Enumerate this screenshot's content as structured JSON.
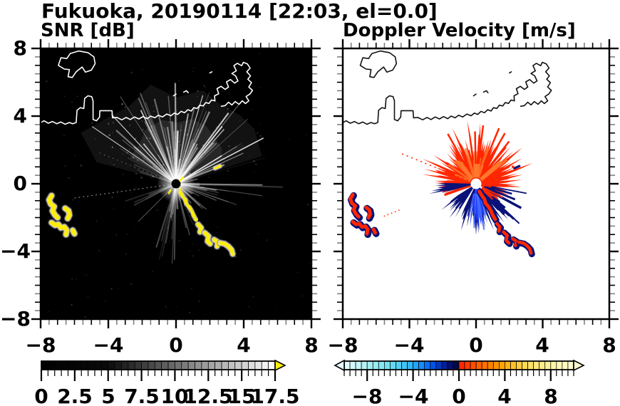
{
  "title": "Fukuoka, 20190114 [22:03, el=0.0]",
  "panels": {
    "snr": {
      "label": "SNR [dB]",
      "x_ticks": [
        "−8",
        "−4",
        "0",
        "4",
        "8"
      ],
      "y_ticks": [
        "8",
        "4",
        "0",
        "−4",
        "−8"
      ]
    },
    "velocity": {
      "label": "Doppler Velocity [m/s]",
      "x_ticks": [
        "−8",
        "−4",
        "0",
        "4",
        "8"
      ]
    }
  },
  "colorbars": {
    "snr": {
      "tick_labels": [
        "0",
        "2.5",
        "5",
        "7.5",
        "10",
        "12.5",
        "15",
        "17.5"
      ],
      "min": 0,
      "max": 17.5,
      "segment_step": 0.5,
      "major_tick_step": 2.5,
      "overflow_color": "#ffef00",
      "stops": [
        [
          0,
          "#000000"
        ],
        [
          5,
          "#0b0b0b"
        ],
        [
          7.5,
          "#3a3a3a"
        ],
        [
          10,
          "#6d6d6d"
        ],
        [
          12.5,
          "#a0a0a0"
        ],
        [
          15,
          "#cfcfcf"
        ],
        [
          17.5,
          "#ffffff"
        ]
      ]
    },
    "velocity": {
      "tick_labels": [
        "−8",
        "−4",
        "0",
        "4",
        "8"
      ],
      "min": -10,
      "max": 10,
      "segment_step": 0.5,
      "major_tick_step": 4,
      "stops": [
        [
          -10,
          "#e6fcff"
        ],
        [
          -8.5,
          "#bdf4f6"
        ],
        [
          -7,
          "#8feaf0"
        ],
        [
          -5.5,
          "#5dd6f2"
        ],
        [
          -4.5,
          "#38bff6"
        ],
        [
          -3.5,
          "#1e9afa"
        ],
        [
          -2.8,
          "#0c72ff"
        ],
        [
          -2.2,
          "#004fe6"
        ],
        [
          -1.6,
          "#0031b2"
        ],
        [
          -1,
          "#001284"
        ],
        [
          -0.4,
          "#000a55"
        ],
        [
          -0.05,
          "#000733"
        ],
        [
          0.05,
          "#ff1e00"
        ],
        [
          0.8,
          "#ff3c00"
        ],
        [
          1.6,
          "#ff5a00"
        ],
        [
          2.4,
          "#ff7700"
        ],
        [
          3.2,
          "#ff9100"
        ],
        [
          4,
          "#ffab0a"
        ],
        [
          4.8,
          "#ffc32b"
        ],
        [
          5.6,
          "#ffd84e"
        ],
        [
          6.6,
          "#ffe675"
        ],
        [
          7.6,
          "#fff093"
        ],
        [
          8.6,
          "#fff7b2"
        ],
        [
          10,
          "#fffbd0"
        ]
      ]
    }
  },
  "colors": {
    "snr_background": "#000000",
    "velocity_background": "#ffffff",
    "coastline_snr": "#ffffff",
    "coastline_velocity": "#000000",
    "strong_echo_snr": "#ffee00",
    "positive_velocity": "#ff2600",
    "negative_velocity_dark": "#0a1278",
    "negative_velocity_bright": "#1f3fff"
  },
  "chart_data": [
    {
      "type": "heatmap",
      "title": "SNR [dB]",
      "x_range": [
        -8,
        8
      ],
      "y_range": [
        -8,
        8
      ],
      "x_ticks": [
        -8,
        -4,
        0,
        4,
        8
      ],
      "y_ticks": [
        -8,
        -4,
        0,
        4,
        8
      ],
      "minor_tick_step": 0.5,
      "colorbar": {
        "min": 0,
        "max": 17.5,
        "ticks": [
          0,
          2.5,
          5,
          7.5,
          10,
          12.5,
          15,
          17.5
        ],
        "colormap": "black-to-white grayscale",
        "overflow": "yellow arrow > 17.5"
      },
      "features": [
        {
          "name": "radar-origin",
          "x": 0,
          "y": 0
        },
        {
          "name": "clear-air-echo-fan",
          "desc": "bright white radial streaks fanning mostly upward from origin, range ~1-5"
        },
        {
          "name": "dark-wedges",
          "desc": "echo-free wedges toward west and southwest of origin"
        },
        {
          "name": "strong-echo-chain",
          "desc": "yellow (>17.5 dB) broken chain from (0.2,-0.5) to (3.4,-4.2)"
        },
        {
          "name": "strong-echo-cluster-west",
          "desc": "yellow (>17.5 dB) squiggly blobs between (-7.5,-0.7) and (-6,-3)"
        },
        {
          "name": "coastline",
          "desc": "white coastline with island at (-6,7) and harbor piers near (3,6)"
        }
      ]
    },
    {
      "type": "heatmap",
      "title": "Doppler Velocity [m/s]",
      "x_range": [
        -8,
        8
      ],
      "y_range": [
        -8,
        8
      ],
      "x_ticks": [
        -8,
        -4,
        0,
        4,
        8
      ],
      "y_ticks": [
        -8,
        -4,
        0,
        4,
        8
      ],
      "minor_tick_step": 0.5,
      "colorbar": {
        "min": -10,
        "max": 10,
        "ticks": [
          -8,
          -4,
          0,
          4,
          8
        ],
        "colormap": "diverging cyan-blue-navy / red-orange-yellow",
        "overflow": "arrows both ends"
      },
      "features": [
        {
          "name": "radar-origin",
          "x": 0,
          "y": 0
        },
        {
          "name": "positive-velocity-fan",
          "desc": "red/orange spiky fan north and east of origin, ~+1 to +4 m/s, radius ~3"
        },
        {
          "name": "negative-velocity-fan",
          "desc": "navy/bright-blue spiky echoes south and west of origin, ~-2 to -10 m/s"
        },
        {
          "name": "echo-chain",
          "desc": "red echoes with navy fringes from (0.2,-0.5) to (3.4,-4.2)"
        },
        {
          "name": "echo-cluster-west",
          "desc": "red echoes with navy fringes between (-7.5,-0.7) and (-6,-3)"
        },
        {
          "name": "coastline",
          "desc": "black coastline outline, same as SNR panel"
        }
      ]
    }
  ]
}
